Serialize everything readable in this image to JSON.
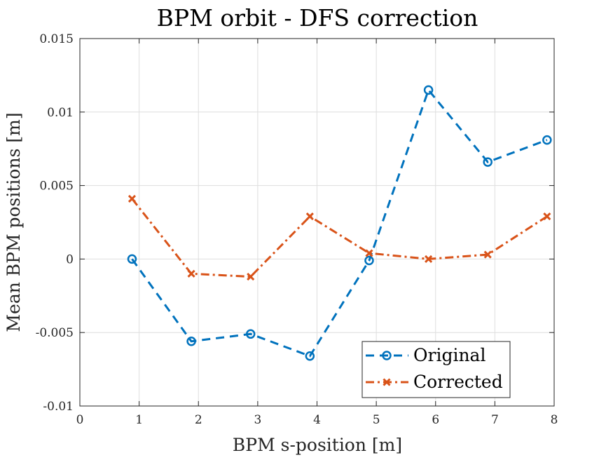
{
  "chart_data": {
    "type": "line",
    "title": "BPM orbit - DFS correction",
    "xlabel": "BPM s-position [m]",
    "ylabel": "Mean BPM positions [m]",
    "xlim": [
      0,
      8
    ],
    "ylim": [
      -0.01,
      0.015
    ],
    "xticks": [
      0,
      1,
      2,
      3,
      4,
      5,
      6,
      7,
      8
    ],
    "xtick_labels": [
      "0",
      "1",
      "2",
      "3",
      "4",
      "5",
      "6",
      "7",
      "8"
    ],
    "yticks": [
      -0.01,
      -0.005,
      0,
      0.005,
      0.01,
      0.015
    ],
    "ytick_labels": [
      "-0.01",
      "-0.005",
      "0",
      "0.005",
      "0.01",
      "0.015"
    ],
    "grid": true,
    "legend_position": "bottom-right",
    "series": [
      {
        "name": "Original",
        "color": "#0072BD",
        "line_style": "dashed",
        "marker": "circle",
        "x": [
          0.88,
          1.88,
          2.88,
          3.88,
          4.88,
          5.88,
          6.88,
          7.88
        ],
        "y": [
          0.0,
          -0.0056,
          -0.0051,
          -0.0066,
          -0.0001,
          0.0115,
          0.0066,
          0.0081
        ]
      },
      {
        "name": "Corrected",
        "color": "#D95319",
        "line_style": "dash-dot",
        "marker": "x",
        "x": [
          0.88,
          1.88,
          2.88,
          3.88,
          4.88,
          5.88,
          6.88,
          7.88
        ],
        "y": [
          0.0041,
          -0.001,
          -0.0012,
          0.0029,
          0.0004,
          0.0,
          0.0003,
          0.0029
        ]
      }
    ]
  }
}
